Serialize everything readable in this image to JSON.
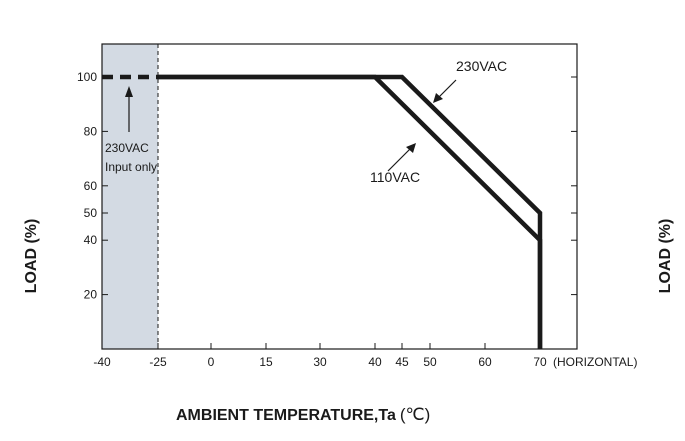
{
  "chart_data": {
    "type": "line",
    "title": "",
    "xlabel": "AMBIENT TEMPERATURE,Ta (℃)",
    "xlabel_main": "AMBIENT TEMPERATURE,Ta",
    "xlabel_unit": "(℃)",
    "ylabel_left": "LOAD (%)",
    "ylabel_right": "LOAD (%)",
    "x_suffix": "(HORIZONTAL)",
    "xlim": [
      -40,
      80
    ],
    "ylim": [
      0,
      110
    ],
    "xticks": [
      -40,
      -25,
      0,
      15,
      30,
      40,
      45,
      50,
      60,
      70
    ],
    "yticks": [
      20,
      40,
      50,
      60,
      80,
      100
    ],
    "grid": false,
    "series": [
      {
        "name": "230VAC",
        "x": [
          -25,
          45,
          70,
          70
        ],
        "y": [
          100,
          100,
          50,
          0
        ]
      },
      {
        "name": "110VAC",
        "x": [
          -25,
          40,
          70,
          70
        ],
        "y": [
          100,
          100,
          40,
          0
        ]
      }
    ],
    "dashed_segment": {
      "x": [
        -40,
        -25
      ],
      "y": [
        100,
        100
      ]
    },
    "shaded_region": {
      "x": [
        -40,
        -25
      ],
      "color": "#d3dae3"
    },
    "annotations": {
      "label_230": "230VAC",
      "label_110": "110VAC",
      "shaded_line1": "230VAC",
      "shaded_line2": "Input only"
    },
    "colors": {
      "line": "#1a1a1a",
      "shade": "#d3dae3",
      "frame": "#1a1a1a"
    }
  }
}
